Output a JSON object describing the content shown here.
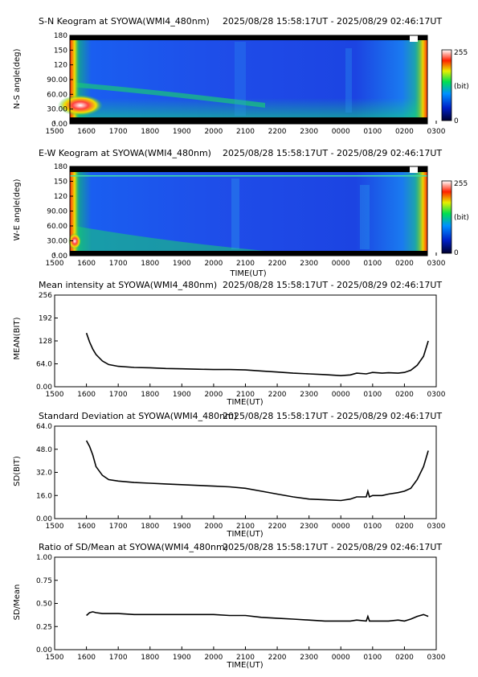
{
  "figure": {
    "station": "SYOWA",
    "instrument": "WMI4_480nm",
    "time_range": "2025/08/28 15:58:17UT - 2025/08/29 02:46:17UT"
  },
  "chart_data": [
    {
      "type": "heatmap",
      "title": "S-N Keogram at SYOWA(WMI4_480nm)",
      "subtitle": "2025/08/28 15:58:17UT - 2025/08/29 02:46:17UT",
      "xlabel": "",
      "ylabel": "N-S angle(deg)",
      "x_ticks": [
        "1500",
        "1600",
        "1700",
        "1800",
        "1900",
        "2000",
        "2100",
        "2200",
        "2300",
        "0000",
        "0100",
        "0200",
        "0300"
      ],
      "y_ticks": [
        "0.00",
        "30.00",
        "60.00",
        "90.00",
        "120",
        "150",
        "180"
      ],
      "ylim": [
        0,
        180
      ],
      "colorbar": {
        "min_label": "0",
        "max_label": "255",
        "unit": "(bit)"
      },
      "grid": false
    },
    {
      "type": "heatmap",
      "title": "E-W Keogram at SYOWA(WMI4_480nm)",
      "subtitle": "2025/08/28 15:58:17UT - 2025/08/29 02:46:17UT",
      "xlabel": "TIME(UT)",
      "ylabel": "W-E angle(deg)",
      "x_ticks": [
        "1500",
        "1600",
        "1700",
        "1800",
        "1900",
        "2000",
        "2100",
        "2200",
        "2300",
        "0000",
        "0100",
        "0200",
        "0300"
      ],
      "y_ticks": [
        "0.00",
        "30.00",
        "60.00",
        "90.00",
        "120",
        "150",
        "180"
      ],
      "ylim": [
        0,
        180
      ],
      "colorbar": {
        "min_label": "0",
        "max_label": "255",
        "unit": "(bit)"
      },
      "grid": false
    },
    {
      "type": "line",
      "title": "Mean intensity at SYOWA(WMI4_480nm)",
      "subtitle": "2025/08/28 15:58:17UT - 2025/08/29 02:46:17UT",
      "xlabel": "TIME(UT)",
      "ylabel": "MEAN(BIT)",
      "x_ticks": [
        "1500",
        "1600",
        "1700",
        "1800",
        "1900",
        "2000",
        "2100",
        "2200",
        "2300",
        "0000",
        "0100",
        "0200",
        "0300"
      ],
      "y_ticks": [
        "0.00",
        "64.0",
        "128",
        "192",
        "256"
      ],
      "ylim": [
        0,
        256
      ],
      "x_hours": [
        16.0,
        16.1,
        16.2,
        16.3,
        16.5,
        16.7,
        17.0,
        17.5,
        18.0,
        18.5,
        19.0,
        19.5,
        20.0,
        20.5,
        21.0,
        21.5,
        22.0,
        22.5,
        23.0,
        23.5,
        24.0,
        24.3,
        24.5,
        24.8,
        25.0,
        25.3,
        25.5,
        25.8,
        26.0,
        26.2,
        26.4,
        26.6,
        26.75
      ],
      "values": [
        150,
        125,
        105,
        90,
        72,
        62,
        57,
        54,
        53,
        51,
        50,
        49,
        48,
        48,
        47,
        44,
        41,
        38,
        36,
        34,
        31,
        33,
        38,
        36,
        40,
        38,
        39,
        38,
        40,
        46,
        60,
        85,
        128
      ],
      "grid": false
    },
    {
      "type": "line",
      "title": "Standard Deviation at SYOWA(WMI4_480nm)",
      "subtitle": "2025/08/28 15:58:17UT - 2025/08/29 02:46:17UT",
      "xlabel": "TIME(UT)",
      "ylabel": "SD(BIT)",
      "x_ticks": [
        "1500",
        "1600",
        "1700",
        "1800",
        "1900",
        "2000",
        "2100",
        "2200",
        "2300",
        "0000",
        "0100",
        "0200",
        "0300"
      ],
      "y_ticks": [
        "0.00",
        "16.0",
        "32.0",
        "48.0",
        "64.0"
      ],
      "ylim": [
        0,
        64
      ],
      "x_hours": [
        16.0,
        16.1,
        16.2,
        16.3,
        16.5,
        16.7,
        17.0,
        17.5,
        18.0,
        18.5,
        19.0,
        19.5,
        20.0,
        20.5,
        21.0,
        21.5,
        22.0,
        22.5,
        23.0,
        23.5,
        24.0,
        24.3,
        24.5,
        24.8,
        24.85,
        24.9,
        25.0,
        25.3,
        25.5,
        25.8,
        26.0,
        26.2,
        26.4,
        26.6,
        26.75
      ],
      "values": [
        54,
        50,
        44,
        36,
        30,
        27,
        26,
        25,
        24.5,
        24,
        23.5,
        23,
        22.5,
        22,
        21,
        19,
        17,
        15,
        13.5,
        13,
        12.5,
        13.5,
        15,
        15,
        19,
        15,
        16,
        16,
        17,
        18,
        19,
        21,
        27,
        36,
        47
      ],
      "grid": false
    },
    {
      "type": "line",
      "title": "Ratio of SD/Mean at SYOWA(WMI4_480nm)",
      "subtitle": "2025/08/28 15:58:17UT - 2025/08/29 02:46:17UT",
      "xlabel": "TIME(UT)",
      "ylabel": "SD/Mean",
      "x_ticks": [
        "1500",
        "1600",
        "1700",
        "1800",
        "1900",
        "2000",
        "2100",
        "2200",
        "2300",
        "0000",
        "0100",
        "0200",
        "0300"
      ],
      "y_ticks": [
        "0.00",
        "0.25",
        "0.50",
        "0.75",
        "1.00"
      ],
      "ylim": [
        0,
        1
      ],
      "x_hours": [
        16.0,
        16.1,
        16.2,
        16.3,
        16.5,
        17.0,
        17.5,
        18.0,
        18.5,
        19.0,
        19.5,
        20.0,
        20.5,
        21.0,
        21.5,
        22.0,
        22.5,
        23.0,
        23.5,
        24.0,
        24.3,
        24.5,
        24.8,
        24.85,
        24.9,
        25.0,
        25.3,
        25.5,
        25.8,
        26.0,
        26.2,
        26.4,
        26.6,
        26.75
      ],
      "values": [
        0.37,
        0.4,
        0.41,
        0.4,
        0.39,
        0.39,
        0.38,
        0.38,
        0.38,
        0.38,
        0.38,
        0.38,
        0.37,
        0.37,
        0.35,
        0.34,
        0.33,
        0.32,
        0.31,
        0.31,
        0.31,
        0.32,
        0.31,
        0.36,
        0.31,
        0.31,
        0.31,
        0.31,
        0.32,
        0.31,
        0.33,
        0.36,
        0.38,
        0.36
      ],
      "grid": false
    }
  ]
}
